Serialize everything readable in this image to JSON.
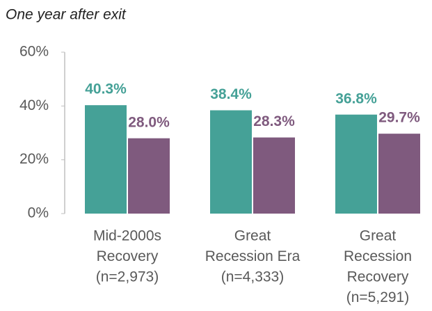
{
  "chart_data": {
    "type": "bar",
    "subtitle": "One year after exit",
    "categories": [
      [
        "Mid-2000s",
        "Recovery",
        "(n=2,973)"
      ],
      [
        "Great",
        "Recession Era",
        "(n=4,333)"
      ],
      [
        "Great",
        "Recession",
        "Recovery",
        "(n=5,291)"
      ]
    ],
    "series": [
      {
        "color": "#45a197",
        "values": [
          40.3,
          38.4,
          36.8
        ],
        "value_labels": [
          "40.3%",
          "38.4%",
          "36.8%"
        ]
      },
      {
        "color": "#7f5a7e",
        "values": [
          28.0,
          28.3,
          29.7
        ],
        "value_labels": [
          "28.0%",
          "28.3%",
          "29.7%"
        ]
      }
    ],
    "ylim": [
      0,
      60
    ],
    "yticks": [
      {
        "value": 0,
        "label": "0%"
      },
      {
        "value": 20,
        "label": "20%"
      },
      {
        "value": 40,
        "label": "40%"
      },
      {
        "value": 60,
        "label": "60%"
      }
    ]
  }
}
